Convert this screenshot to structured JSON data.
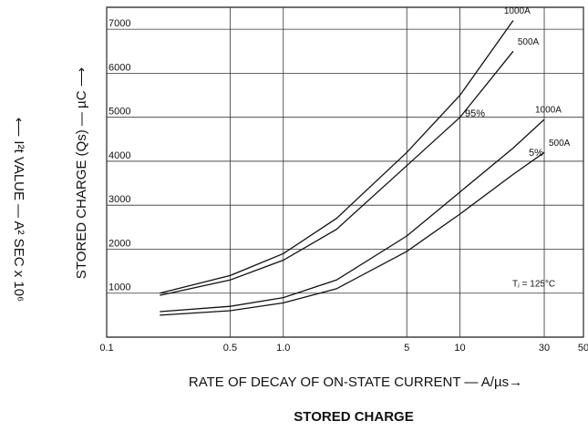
{
  "chart_data": {
    "type": "line",
    "title": "STORED CHARGE",
    "x_label": "RATE OF DECAY OF ON-STATE CURRENT — A/µs→",
    "y_label": "STORED CHARGE (Qs) — µC ⟶",
    "y_label_outer": "⟵ I²t VALUE — A² SEC x 10⁶",
    "annotations": [
      "95%",
      "5%",
      "Tⱼ = 125°C"
    ],
    "xscale": "log",
    "xlim": [
      0.1,
      50
    ],
    "ylim": [
      0,
      7500
    ],
    "xticks": [
      0.1,
      0.5,
      {
        "value": 1,
        "label": "1.0"
      },
      5,
      10,
      30,
      50
    ],
    "yticks": [
      1000,
      2000,
      3000,
      4000,
      5000,
      6000,
      7000
    ],
    "grid": true,
    "series": [
      {
        "name": "1000A",
        "color": "#111",
        "x": [
          0.2,
          0.5,
          1,
          2,
          5,
          10,
          20
        ],
        "values": [
          1000,
          1400,
          1900,
          2700,
          4200,
          5500,
          7200
        ]
      },
      {
        "name": "500A",
        "color": "#111",
        "x": [
          0.2,
          0.5,
          1,
          2,
          5,
          10,
          20
        ],
        "values": [
          950,
          1300,
          1750,
          2450,
          3900,
          5000,
          6500
        ]
      },
      {
        "name": "1000A",
        "color": "#111",
        "x": [
          0.2,
          0.5,
          1,
          2,
          5,
          10,
          20,
          30
        ],
        "values": [
          580,
          700,
          900,
          1300,
          2300,
          3300,
          4300,
          4950
        ]
      },
      {
        "name": "500A",
        "color": "#111",
        "x": [
          0.2,
          0.5,
          1,
          2,
          5,
          10,
          20,
          30
        ],
        "values": [
          500,
          600,
          780,
          1100,
          1950,
          2800,
          3700,
          4200
        ]
      }
    ]
  }
}
